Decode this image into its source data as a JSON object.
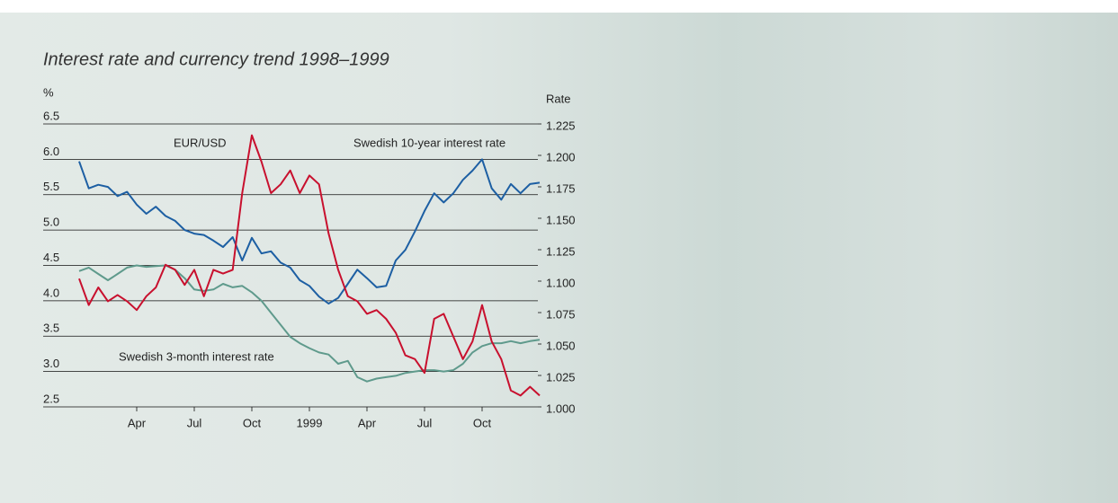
{
  "chart_data": {
    "type": "line",
    "title": "Interest rate and currency trend 1998–1999",
    "ylabel": "%",
    "y2label": "Rate",
    "x": [
      null,
      null,
      null,
      null,
      null,
      null,
      "Apr",
      null,
      null,
      null,
      null,
      null,
      "Jul",
      null,
      null,
      null,
      null,
      null,
      "Oct",
      null,
      null,
      null,
      null,
      null,
      "1999",
      null,
      null,
      null,
      null,
      null,
      "Apr",
      null,
      null,
      null,
      null,
      null,
      "Jul",
      null,
      null,
      null,
      null,
      null,
      "Oct",
      null,
      null,
      null,
      null,
      null,
      null
    ],
    "ylim": [
      2.5,
      6.5
    ],
    "yticks": [
      2.5,
      {
        "value": 3,
        "label": "3.0"
      },
      3.5,
      {
        "value": 4,
        "label": "4.0"
      },
      4.5,
      {
        "value": 5,
        "label": "5.0"
      },
      5.5,
      {
        "value": 6,
        "label": "6.0"
      },
      6.5
    ],
    "y2lim": [
      1.0,
      1.225
    ],
    "y2ticks": [
      {
        "value": 1.0,
        "label": "1.000"
      },
      1.025,
      {
        "value": 1.05,
        "label": "1.050"
      },
      1.075,
      {
        "value": 1.1,
        "label": "1.100"
      },
      1.125,
      {
        "value": 1.15,
        "label": "1.150"
      },
      1.175,
      {
        "value": 1.2,
        "label": "1.200"
      },
      1.225
    ],
    "grid": true,
    "series": [
      {
        "name": "Swedish 10-year interest rate",
        "color": "#1d5fa3",
        "values": [
          5.97,
          5.59,
          5.64,
          5.61,
          5.48,
          5.54,
          5.36,
          5.23,
          5.33,
          5.2,
          5.13,
          5.0,
          4.95,
          4.93,
          4.85,
          4.76,
          4.9,
          4.57,
          4.89,
          4.67,
          4.7,
          4.54,
          4.47,
          4.29,
          4.21,
          4.06,
          3.96,
          4.04,
          4.24,
          4.44,
          4.32,
          4.19,
          4.21,
          4.57,
          4.72,
          4.98,
          5.27,
          5.52,
          5.39,
          5.52,
          5.71,
          5.84,
          6.0,
          5.59,
          5.43,
          5.65,
          5.52,
          5.65,
          5.67
        ]
      },
      {
        "name": "Swedish 3-month interest rate",
        "color": "#5f9a8c",
        "values": [
          4.42,
          4.47,
          4.38,
          4.29,
          4.38,
          4.47,
          4.5,
          4.48,
          4.49,
          4.5,
          4.44,
          4.32,
          4.16,
          4.14,
          4.16,
          4.24,
          4.19,
          4.21,
          4.12,
          4.0,
          3.83,
          3.66,
          3.49,
          3.4,
          3.33,
          3.27,
          3.24,
          3.11,
          3.15,
          2.92,
          2.86,
          2.9,
          2.92,
          2.94,
          2.98,
          3.0,
          3.02,
          3.02,
          3.0,
          3.02,
          3.11,
          3.27,
          3.36,
          3.4,
          3.4,
          3.43,
          3.4,
          3.43,
          3.45
        ]
      },
      {
        "name": "EUR/USD",
        "color": "#c8102e",
        "axis": "y2",
        "values": [
          1.102,
          1.081,
          1.095,
          1.084,
          1.089,
          1.084,
          1.077,
          1.088,
          1.095,
          1.113,
          1.109,
          1.097,
          1.109,
          1.088,
          1.109,
          1.106,
          1.109,
          1.17,
          1.216,
          1.195,
          1.17,
          1.177,
          1.188,
          1.17,
          1.184,
          1.177,
          1.138,
          1.109,
          1.088,
          1.084,
          1.074,
          1.077,
          1.07,
          1.059,
          1.041,
          1.038,
          1.027,
          1.07,
          1.074,
          1.056,
          1.038,
          1.052,
          1.081,
          1.052,
          1.038,
          1.013,
          1.009,
          1.016,
          1.009
        ]
      }
    ]
  }
}
